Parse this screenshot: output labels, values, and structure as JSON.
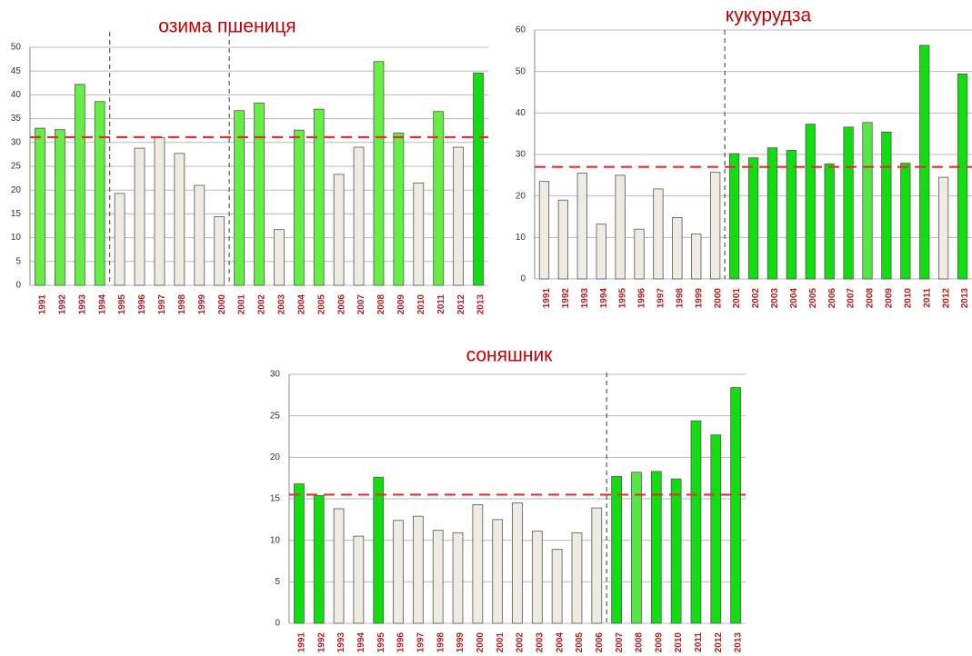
{
  "chart_data": [
    {
      "type": "bar",
      "title": "озима пшениця",
      "categories": [
        "1991",
        "1992",
        "1993",
        "1994",
        "1995",
        "1996",
        "1997",
        "1998",
        "1999",
        "2000",
        "2001",
        "2002",
        "2003",
        "2004",
        "2005",
        "2006",
        "2007",
        "2008",
        "2009",
        "2010",
        "2011",
        "2012",
        "2013"
      ],
      "values": [
        33,
        32.7,
        42.2,
        38.6,
        19.3,
        28.8,
        31,
        27.7,
        21,
        14.4,
        36.7,
        38.3,
        11.7,
        32.6,
        37,
        23.3,
        29,
        47,
        32,
        21.5,
        36.5,
        29,
        44.6
      ],
      "colors": [
        "#66ee44",
        "#66ee44",
        "#66ee44",
        "#66ee44",
        "#eeebe3",
        "#eeebe3",
        "#eeebe3",
        "#eeebe3",
        "#eeebe3",
        "#eeebe3",
        "#66ee44",
        "#66ee44",
        "#eeebe3",
        "#66ee44",
        "#66ee44",
        "#eeebe3",
        "#eeebe3",
        "#66ee44",
        "#66ee44",
        "#eeebe3",
        "#66ee44",
        "#eeebe3",
        "#11dd11"
      ],
      "mean": 31.1,
      "mean_color": "#e03030",
      "dividers_after": [
        3,
        9
      ],
      "ylim": [
        0,
        50
      ],
      "yticks": [
        0,
        5,
        10,
        15,
        20,
        25,
        30,
        35,
        40,
        45,
        50
      ],
      "grid": true
    },
    {
      "type": "bar",
      "title": "кукурудза",
      "categories": [
        "1991",
        "1992",
        "1993",
        "1994",
        "1995",
        "1996",
        "1997",
        "1998",
        "1999",
        "2000",
        "2001",
        "2002",
        "2003",
        "2004",
        "2005",
        "2006",
        "2007",
        "2008",
        "2009",
        "2010",
        "2011",
        "2012",
        "2013"
      ],
      "values": [
        23.5,
        19,
        25.5,
        13.2,
        25,
        12,
        21.7,
        14.8,
        10.8,
        25.7,
        30.2,
        29.2,
        31.6,
        31,
        37.3,
        27.7,
        36.6,
        37.7,
        35.4,
        27.9,
        56.3,
        24.5,
        49.4
      ],
      "colors": [
        "#eeebe3",
        "#eeebe3",
        "#eeebe3",
        "#eeebe3",
        "#eeebe3",
        "#eeebe3",
        "#eeebe3",
        "#eeebe3",
        "#eeebe3",
        "#eeebe3",
        "#11dd11",
        "#11dd11",
        "#11dd11",
        "#11dd11",
        "#11dd11",
        "#11dd11",
        "#11dd11",
        "#55e844",
        "#11dd11",
        "#11dd11",
        "#11dd11",
        "#eeebe3",
        "#11dd11"
      ],
      "mean": 27,
      "mean_color": "#e03030",
      "dividers_after": [
        9
      ],
      "ylim": [
        0,
        60
      ],
      "yticks": [
        0,
        10,
        20,
        30,
        40,
        50,
        60
      ],
      "grid": true
    },
    {
      "type": "bar",
      "title": "соняшник",
      "categories": [
        "1991",
        "1992",
        "1993",
        "1994",
        "1995",
        "1996",
        "1997",
        "1998",
        "1999",
        "2000",
        "2001",
        "2002",
        "2003",
        "2004",
        "2005",
        "2006",
        "2007",
        "2008",
        "2009",
        "2010",
        "2011",
        "2012",
        "2013"
      ],
      "values": [
        16.8,
        15.4,
        13.8,
        10.5,
        17.6,
        12.4,
        12.9,
        11.2,
        10.9,
        14.3,
        12.5,
        14.5,
        11.1,
        8.9,
        10.9,
        13.9,
        17.7,
        18.2,
        18.3,
        17.4,
        24.4,
        22.7,
        28.4
      ],
      "colors": [
        "#11dd11",
        "#11dd11",
        "#eeebe3",
        "#eeebe3",
        "#11dd11",
        "#eeebe3",
        "#eeebe3",
        "#eeebe3",
        "#eeebe3",
        "#eeebe3",
        "#eeebe3",
        "#eeebe3",
        "#eeebe3",
        "#eeebe3",
        "#eeebe3",
        "#eeebe3",
        "#11dd11",
        "#55e844",
        "#11dd11",
        "#11dd11",
        "#11dd11",
        "#11dd11",
        "#11dd11"
      ],
      "mean": 15.5,
      "mean_color": "#e03030",
      "dividers_after": [
        15
      ],
      "ylim": [
        0,
        30
      ],
      "yticks": [
        0,
        5,
        10,
        15,
        20,
        25,
        30
      ],
      "grid": true
    }
  ]
}
